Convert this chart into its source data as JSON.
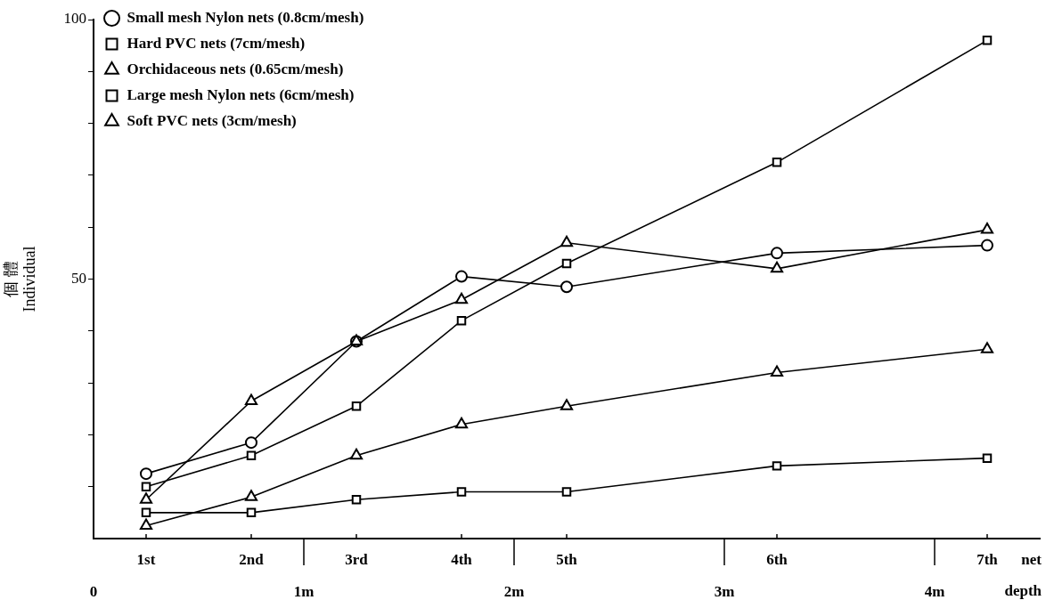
{
  "chart_data": {
    "type": "line",
    "ylabel": "個 體\nIndividual",
    "xlabel": "depth",
    "annotations": [
      {
        "text": "1st",
        "x": 0.25
      },
      {
        "text": "2nd",
        "x": 0.75
      },
      {
        "text": "3rd",
        "x": 1.25
      },
      {
        "text": "4th",
        "x": 1.75
      },
      {
        "text": "5th",
        "x": 2.25
      },
      {
        "text": "6th",
        "x": 3.25
      },
      {
        "text": "7th",
        "x": 4.25
      },
      "net"
    ],
    "x": [
      0.25,
      0.75,
      1.25,
      1.75,
      2.25,
      3.25,
      4.25
    ],
    "xlim": [
      0,
      4.5
    ],
    "xticks": [
      0,
      {
        "value": 1,
        "label": "1m"
      },
      {
        "value": 2,
        "label": "2m"
      },
      {
        "value": 3,
        "label": "3m"
      },
      {
        "value": 4,
        "label": "4m"
      }
    ],
    "ylim": [
      0,
      100
    ],
    "yticks": [
      {
        "value": 10,
        "label": null
      },
      {
        "value": 20,
        "label": null
      },
      {
        "value": 30,
        "label": null
      },
      {
        "value": 40,
        "label": null
      },
      50,
      {
        "value": 60,
        "label": null
      },
      {
        "value": 70,
        "label": null
      },
      {
        "value": 80,
        "label": null
      },
      {
        "value": 90,
        "label": null
      },
      100
    ],
    "grid": false,
    "legend": "top left",
    "line_style": "solid",
    "series": [
      {
        "name": "Small mesh Nylon nets (0.8cm/mesh)",
        "color": "#000000",
        "marker": "circle",
        "values": [
          12.5,
          18.5,
          38,
          50.5,
          48.5,
          55,
          56.5
        ]
      },
      {
        "name": "Hard PVC nets (7cm/mesh)",
        "color": "#000000",
        "marker": "square",
        "values": [
          10,
          16,
          25.5,
          42,
          53,
          72.5,
          96
        ]
      },
      {
        "name": "Orchidaceous nets (0.65cm/mesh)",
        "color": "#000000",
        "marker": "triangle",
        "values": [
          7.5,
          26.5,
          38,
          46,
          57,
          52,
          59.5
        ]
      },
      {
        "name": "Large mesh Nylon nets (6cm/mesh)",
        "color": "#000000",
        "marker": "square",
        "values": [
          5,
          5,
          7.5,
          9,
          9,
          14,
          15.5
        ]
      },
      {
        "name": "Soft PVC nets (3cm/mesh)",
        "color": "#000000",
        "marker": "triangle",
        "values": [
          2.5,
          8,
          16,
          22,
          25.5,
          32,
          36.5
        ]
      }
    ]
  }
}
